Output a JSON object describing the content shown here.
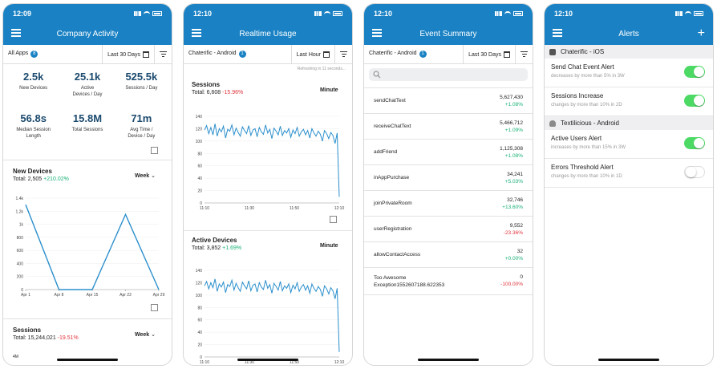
{
  "status": {
    "times": [
      "12:09",
      "12:10",
      "12:10",
      "12:10"
    ]
  },
  "screen1": {
    "title": "Company Activity",
    "filter_app": "All Apps",
    "filter_app_count": "8",
    "filter_range": "Last 30 Days",
    "stats": [
      {
        "value": "2.5k",
        "label": "New Devices"
      },
      {
        "value": "25.1k",
        "label": "Active Devices / Day"
      },
      {
        "value": "525.5k",
        "label": "Sessions / Day"
      },
      {
        "value": "56.8s",
        "label": "Median Session Length"
      },
      {
        "value": "15.8M",
        "label": "Total Sessions"
      },
      {
        "value": "71m",
        "label": "Avg Time / Device / Day"
      }
    ],
    "new_devices": {
      "title": "New Devices",
      "total_label": "Total: 2,505",
      "change": "+210.02%",
      "period": "Week"
    },
    "sessions": {
      "title": "Sessions",
      "total_label": "Total: 15,244,021",
      "change": "-19.51%",
      "period": "Week",
      "y_top": "4M"
    }
  },
  "screen2": {
    "title": "Realtime Usage",
    "app": "Chaterific - Android",
    "app_count": "1",
    "range": "Last Hour",
    "refresh_text": "Refreshing in 11 seconds...",
    "sessions": {
      "title": "Sessions",
      "total_label": "Total: 6,608",
      "change": "-15.96%",
      "period": "Minute"
    },
    "active": {
      "title": "Active Devices",
      "total_label": "Total: 3,852",
      "change": "+1.69%",
      "period": "Minute"
    }
  },
  "screen3": {
    "title": "Event Summary",
    "app": "Chaterific - Android",
    "app_count": "1",
    "range": "Last 30 Days",
    "events": [
      {
        "name": "sendChatText",
        "value": "5,627,430",
        "change": "+1.08%",
        "dir": "pos"
      },
      {
        "name": "receiveChatText",
        "value": "5,466,712",
        "change": "+1.09%",
        "dir": "pos"
      },
      {
        "name": "addFriend",
        "value": "1,125,308",
        "change": "+1.08%",
        "dir": "pos"
      },
      {
        "name": "inAppPurchase",
        "value": "34,241",
        "change": "+5.03%",
        "dir": "pos"
      },
      {
        "name": "joinPrivateRoom",
        "value": "32,746",
        "change": "+13.60%",
        "dir": "pos"
      },
      {
        "name": "userRegistration",
        "value": "9,552",
        "change": "-23.36%",
        "dir": "neg"
      },
      {
        "name": "allowContactAccess",
        "value": "32",
        "change": "+0.00%",
        "dir": "pos"
      },
      {
        "name": "Too Awesome Exception1552607188.622353",
        "value": "0",
        "change": "-100.00%",
        "dir": "neg"
      }
    ]
  },
  "screen4": {
    "title": "Alerts",
    "groups": [
      {
        "name": "Chaterific - iOS",
        "alerts": [
          {
            "title": "Send Chat Event Alert",
            "desc": "decreases by more than 5% in 3W",
            "on": true
          },
          {
            "title": "Sessions Increase",
            "desc": "changes by more than 10% in 2D",
            "on": true
          }
        ]
      },
      {
        "name": "Textilicious - Android",
        "alerts": [
          {
            "title": "Active Users Alert",
            "desc": "increases by more than 15% in 3W",
            "on": true
          },
          {
            "title": "Errors Threshold Alert",
            "desc": "changes by more than 10% in 1D",
            "on": false
          }
        ]
      }
    ]
  },
  "chart_data": [
    {
      "type": "line",
      "title": "New Devices",
      "categories": [
        "Apr 1",
        "Apr 8",
        "Apr 15",
        "Apr 22",
        "Apr 29"
      ],
      "series": [
        {
          "values": [
            1300,
            0,
            0,
            1150,
            0
          ]
        }
      ],
      "yticks": [
        "0",
        "200",
        "400",
        "600",
        "800",
        "1k",
        "1.2k",
        "1.4k"
      ],
      "ylim": [
        0,
        1400
      ]
    },
    {
      "type": "line",
      "title": "Sessions",
      "xticks": [
        "11:10",
        "11:30",
        "11:50",
        "12:10"
      ],
      "yticks": [
        "0",
        "20",
        "40",
        "60",
        "80",
        "100",
        "120",
        "140"
      ],
      "ylim": [
        0,
        140
      ],
      "series": [
        {
          "values": [
            118,
            125,
            112,
            122,
            110,
            128,
            108,
            120,
            115,
            124,
            105,
            119,
            116,
            126,
            110,
            121,
            114,
            108,
            123,
            117,
            112,
            125,
            109,
            118,
            120,
            107,
            122,
            115,
            111,
            126,
            113,
            119,
            104,
            121,
            116,
            110,
            124,
            109,
            117,
            113,
            120,
            106,
            118,
            112,
            122,
            108,
            115,
            119,
            110,
            117,
            105,
            120,
            113,
            108,
            116,
            111,
            100,
            117,
            112,
            104,
            114,
            109,
            96,
            113,
            10
          ]
        }
      ]
    },
    {
      "type": "line",
      "title": "Active Devices",
      "xticks": [
        "11:10",
        "11:30",
        "11:50",
        "12:10"
      ],
      "yticks": [
        "0",
        "20",
        "40",
        "60",
        "80",
        "100",
        "120",
        "140"
      ],
      "ylim": [
        0,
        140
      ],
      "series": [
        {
          "values": [
            115,
            122,
            110,
            120,
            112,
            126,
            106,
            118,
            113,
            121,
            104,
            117,
            114,
            124,
            108,
            119,
            112,
            106,
            121,
            115,
            110,
            123,
            107,
            116,
            118,
            105,
            120,
            113,
            109,
            124,
            111,
            117,
            103,
            119,
            114,
            108,
            122,
            107,
            115,
            111,
            118,
            104,
            116,
            110,
            120,
            106,
            113,
            117,
            108,
            115,
            103,
            118,
            111,
            106,
            114,
            109,
            98,
            115,
            110,
            102,
            112,
            107,
            94,
            111,
            8
          ]
        }
      ]
    }
  ]
}
